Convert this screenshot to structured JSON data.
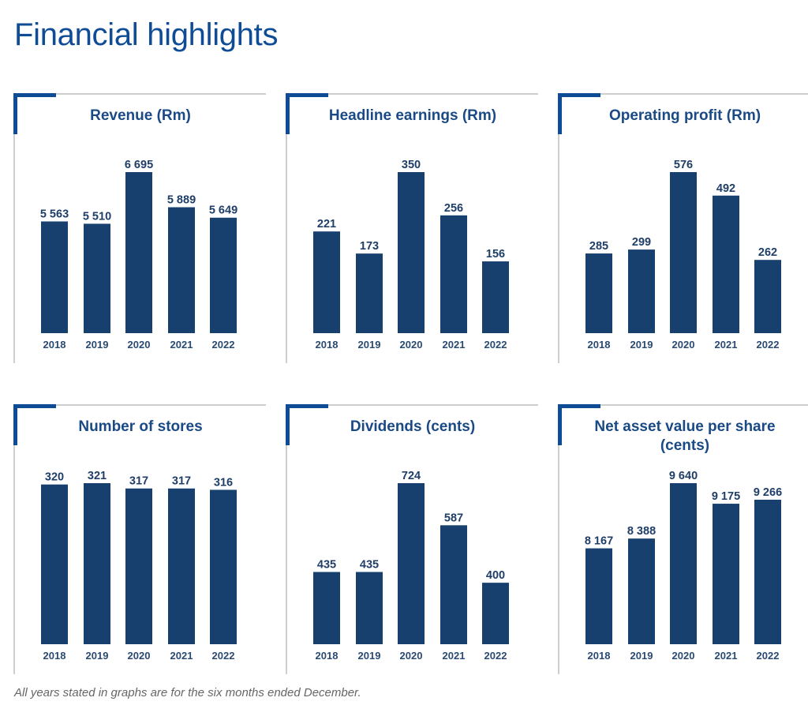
{
  "page": {
    "title": "Financial highlights",
    "footnote": "All years stated in graphs are for the six months ended December.",
    "accent_color": "#0f4c96",
    "bar_color": "#17406f"
  },
  "chart_data": [
    {
      "type": "bar",
      "title": "Revenue (Rm)",
      "categories": [
        "2018",
        "2019",
        "2020",
        "2021",
        "2022"
      ],
      "values": [
        5563,
        5510,
        6695,
        5889,
        5649
      ],
      "labels": [
        "5 563",
        "5 510",
        "6 695",
        "5 889",
        "5 649"
      ],
      "xlabel": "",
      "ylabel": "",
      "ylim": [
        3000,
        6695
      ],
      "grid": false
    },
    {
      "type": "bar",
      "title": "Headline earnings (Rm)",
      "categories": [
        "2018",
        "2019",
        "2020",
        "2021",
        "2022"
      ],
      "values": [
        221,
        173,
        350,
        256,
        156
      ],
      "labels": [
        "221",
        "173",
        "350",
        "256",
        "156"
      ],
      "xlabel": "",
      "ylabel": "",
      "ylim": [
        0,
        350
      ],
      "grid": false
    },
    {
      "type": "bar",
      "title": "Operating profit (Rm)",
      "categories": [
        "2018",
        "2019",
        "2020",
        "2021",
        "2022"
      ],
      "values": [
        285,
        299,
        576,
        492,
        262
      ],
      "labels": [
        "285",
        "299",
        "576",
        "492",
        "262"
      ],
      "xlabel": "",
      "ylabel": "",
      "ylim": [
        0,
        576
      ],
      "grid": false
    },
    {
      "type": "bar",
      "title": "Number of stores",
      "categories": [
        "2018",
        "2019",
        "2020",
        "2021",
        "2022"
      ],
      "values": [
        320,
        321,
        317,
        317,
        316
      ],
      "labels": [
        "320",
        "321",
        "317",
        "317",
        "316"
      ],
      "xlabel": "",
      "ylabel": "",
      "ylim": [
        200,
        321
      ],
      "grid": false
    },
    {
      "type": "bar",
      "title": "Dividends (cents)",
      "categories": [
        "2018",
        "2019",
        "2020",
        "2021",
        "2022"
      ],
      "values": [
        435,
        435,
        724,
        587,
        400
      ],
      "labels": [
        "435",
        "435",
        "724",
        "587",
        "400"
      ],
      "xlabel": "",
      "ylabel": "",
      "ylim": [
        200,
        724
      ],
      "grid": false
    },
    {
      "type": "bar",
      "title": "Net asset value per share (cents)",
      "title_lines": [
        "Net asset value per share",
        "(cents)"
      ],
      "categories": [
        "2018",
        "2019",
        "2020",
        "2021",
        "2022"
      ],
      "values": [
        8167,
        8388,
        9640,
        9175,
        9266
      ],
      "labels": [
        "8 167",
        "8 388",
        "9 640",
        "9 175",
        "9 266"
      ],
      "xlabel": "",
      "ylabel": "",
      "ylim": [
        6000,
        9640
      ],
      "grid": false
    }
  ]
}
